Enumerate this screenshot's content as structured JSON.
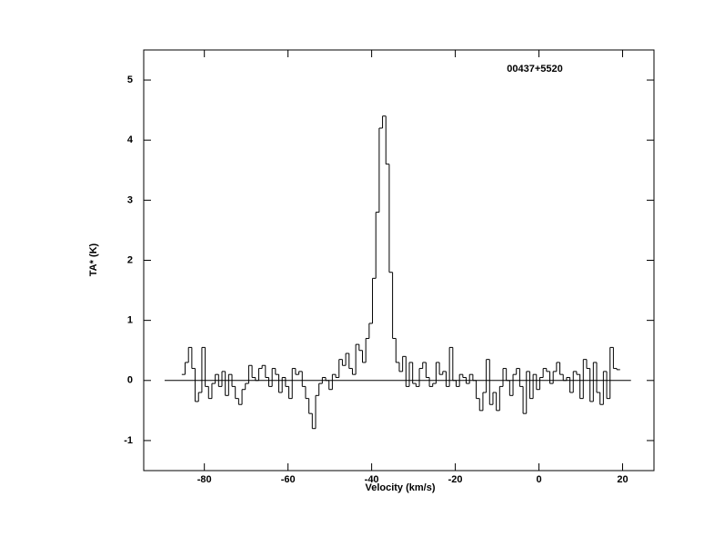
{
  "chart_data": {
    "type": "step",
    "annotation": "00437+5520",
    "xlabel": "Velocity (km/s)",
    "ylabel": "TA* (K)",
    "xlim": [
      -94.5,
      27.5
    ],
    "ylim": [
      -1.5,
      5.5
    ],
    "xticks": [
      -80,
      -60,
      -40,
      -20,
      0,
      20
    ],
    "yticks": [
      -1,
      0,
      1,
      2,
      3,
      4,
      5
    ],
    "baseline": {
      "x": [
        -89.5,
        22
      ],
      "y": 0
    },
    "color": "#000000",
    "x": [
      -85,
      -84.2,
      -83.4,
      -82.6,
      -81.8,
      -81,
      -80.2,
      -79.4,
      -78.6,
      -77.8,
      -77,
      -76.2,
      -75.4,
      -74.6,
      -73.8,
      -73,
      -72.2,
      -71.4,
      -70.6,
      -69.8,
      -69,
      -68.2,
      -67.4,
      -66.6,
      -65.8,
      -65,
      -64.2,
      -63.4,
      -62.6,
      -61.8,
      -61,
      -60.2,
      -59.4,
      -58.6,
      -57.8,
      -57,
      -56.2,
      -55.4,
      -54.6,
      -53.8,
      -53,
      -52.2,
      -51.4,
      -50.6,
      -49.8,
      -49,
      -48.2,
      -47.4,
      -46.6,
      -45.8,
      -45,
      -44.2,
      -43.4,
      -42.6,
      -41.8,
      -41,
      -40.2,
      -39.4,
      -38.6,
      -37.8,
      -37,
      -36.2,
      -35.4,
      -34.6,
      -33.8,
      -33,
      -32.2,
      -31.4,
      -30.6,
      -29.8,
      -29,
      -28.2,
      -27.4,
      -26.6,
      -25.8,
      -25,
      -24.2,
      -23.4,
      -22.6,
      -21.8,
      -21,
      -20.2,
      -19.4,
      -18.6,
      -17.8,
      -17,
      -16.2,
      -15.4,
      -14.6,
      -13.8,
      -13,
      -12.2,
      -11.4,
      -10.6,
      -9.8,
      -9,
      -8.2,
      -7.4,
      -6.6,
      -5.8,
      -5,
      -4.2,
      -3.4,
      -2.6,
      -1.8,
      -1,
      -0.2,
      0.6,
      1.4,
      2.2,
      3,
      3.8,
      4.6,
      5.4,
      6.2,
      7,
      7.8,
      8.6,
      9.4,
      10.2,
      11,
      11.8,
      12.6,
      13.4,
      14.2,
      15,
      15.8,
      16.6,
      17.4,
      18.2,
      19
    ],
    "values": [
      0.1,
      0.3,
      0.55,
      0.2,
      -0.35,
      -0.2,
      0.55,
      -0.1,
      -0.3,
      -0.05,
      0.1,
      -0.1,
      0.15,
      -0.25,
      0.1,
      -0.1,
      -0.3,
      -0.4,
      -0.15,
      -0.05,
      0.25,
      0.05,
      0.0,
      0.2,
      0.25,
      0.05,
      -0.1,
      0.2,
      0.1,
      -0.2,
      0.05,
      -0.1,
      -0.3,
      0.2,
      0.1,
      0.15,
      -0.1,
      -0.3,
      -0.55,
      -0.8,
      -0.25,
      -0.05,
      0.05,
      0.0,
      -0.15,
      0.1,
      0.05,
      0.35,
      0.25,
      0.45,
      0.2,
      0.1,
      0.6,
      0.5,
      0.3,
      0.7,
      0.95,
      1.7,
      2.8,
      4.2,
      4.4,
      3.6,
      1.8,
      0.7,
      0.3,
      0.15,
      0.4,
      -0.1,
      0.3,
      -0.05,
      -0.1,
      0.2,
      0.3,
      0.05,
      -0.1,
      -0.05,
      0.3,
      0.1,
      0.15,
      -0.1,
      0.55,
      0.0,
      -0.1,
      0.1,
      0.05,
      -0.05,
      0.1,
      0.0,
      -0.3,
      -0.5,
      -0.2,
      0.35,
      -0.4,
      -0.2,
      -0.5,
      -0.1,
      0.2,
      0.0,
      -0.25,
      0.1,
      0.2,
      -0.1,
      -0.55,
      0.15,
      -0.3,
      0.1,
      -0.15,
      0.05,
      0.2,
      0.15,
      -0.05,
      0.15,
      0.3,
      0.1,
      0.0,
      0.05,
      -0.2,
      0.15,
      0.1,
      -0.3,
      0.35,
      0.2,
      -0.35,
      0.3,
      -0.2,
      -0.4,
      0.15,
      -0.3,
      0.55,
      0.2,
      0.18
    ]
  }
}
